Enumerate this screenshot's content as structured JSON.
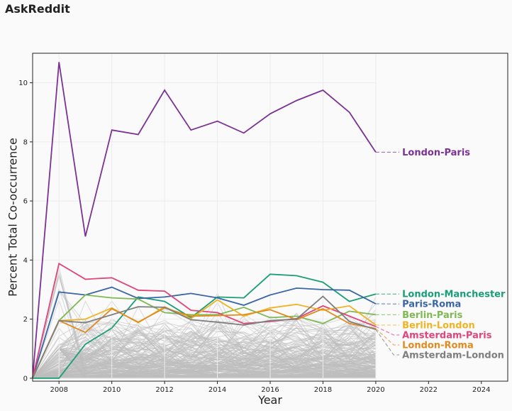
{
  "page": {
    "title": "AskReddit"
  },
  "chart_data": {
    "type": "line",
    "title": "",
    "xlabel": "Year",
    "ylabel": "Percent Total Co-occurrence",
    "xlim": [
      2007,
      2025
    ],
    "ylim": [
      -0.1,
      11
    ],
    "xticks": [
      2008,
      2010,
      2012,
      2014,
      2016,
      2018,
      2020,
      2022,
      2024
    ],
    "yticks": [
      0,
      2,
      4,
      6,
      8,
      10
    ],
    "grid": true,
    "legend": "end-of-line labels",
    "x": [
      2007,
      2008,
      2009,
      2010,
      2011,
      2012,
      2013,
      2014,
      2015,
      2016,
      2017,
      2018,
      2019,
      2020
    ],
    "series": [
      {
        "name": "London-Paris",
        "color": "#7b3294",
        "values": [
          0,
          10.7,
          4.8,
          8.4,
          8.25,
          9.75,
          8.4,
          8.7,
          8.3,
          8.95,
          9.4,
          9.75,
          9.0,
          7.65
        ]
      },
      {
        "name": "London-Manchester",
        "color": "#1b9e77",
        "values": [
          0,
          0,
          1.15,
          1.7,
          2.75,
          2.6,
          2.05,
          2.75,
          2.72,
          3.52,
          3.47,
          3.25,
          2.6,
          2.85
        ]
      },
      {
        "name": "Paris-Roma",
        "color": "#3a66a7",
        "values": [
          0,
          2.92,
          2.82,
          3.08,
          2.7,
          2.75,
          2.87,
          2.72,
          2.47,
          2.82,
          3.05,
          3.0,
          2.98,
          2.52
        ]
      },
      {
        "name": "Berlin-Paris",
        "color": "#7fb954",
        "values": [
          0,
          1.95,
          2.82,
          2.72,
          2.68,
          2.22,
          2.15,
          2.15,
          2.4,
          2.05,
          2.1,
          1.85,
          2.27,
          2.15
        ]
      },
      {
        "name": "Amsterdam-Paris",
        "color": "#e0457b",
        "values": [
          0,
          3.88,
          3.35,
          3.4,
          2.98,
          2.95,
          2.3,
          2.22,
          1.85,
          1.92,
          2.02,
          2.45,
          2.1,
          1.75
        ]
      },
      {
        "name": "Berlin-London",
        "color": "#f0b323",
        "values": [
          0,
          1.95,
          2.0,
          2.38,
          1.88,
          2.42,
          2.02,
          2.65,
          2.1,
          2.38,
          2.5,
          2.3,
          2.45,
          1.8
        ]
      },
      {
        "name": "London-Roma",
        "color": "#e08b20",
        "values": [
          0,
          1.95,
          1.55,
          2.35,
          1.9,
          2.38,
          2.1,
          2.12,
          2.15,
          2.32,
          1.98,
          2.35,
          1.85,
          1.68
        ]
      },
      {
        "name": "Amsterdam-London",
        "color": "#7f7f7f",
        "values": [
          0,
          1.95,
          1.88,
          2.15,
          2.42,
          2.4,
          1.98,
          1.9,
          1.8,
          1.95,
          2.0,
          2.77,
          1.92,
          1.65
        ]
      }
    ],
    "background_series_color": "#bdbdbd",
    "label_x": 2021
  }
}
